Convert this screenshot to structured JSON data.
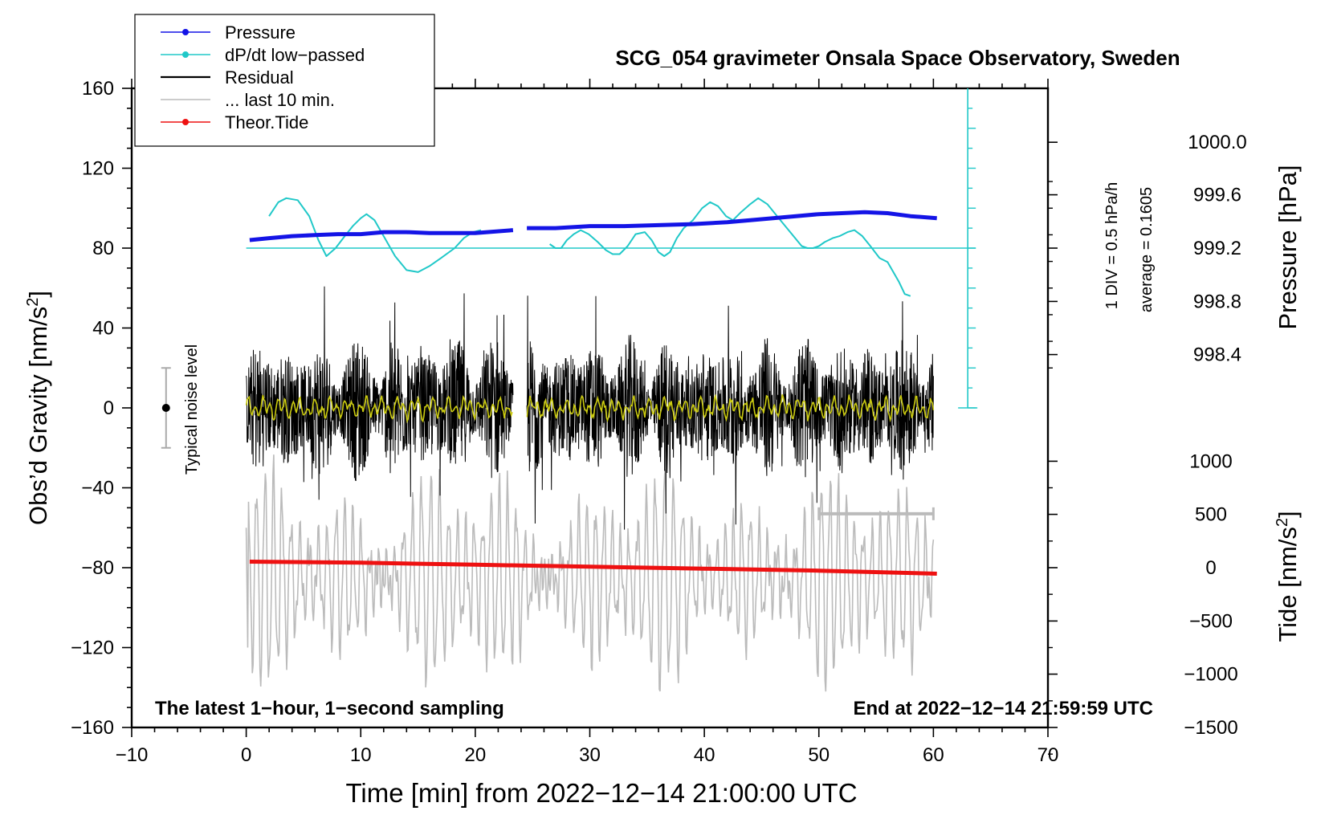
{
  "chart_data": {
    "type": "line",
    "title": "SCG_054 gravimeter Onsala Space Observatory, Sweden",
    "xlabel": "Time [min] from 2022−12−14 21:00:00 UTC",
    "ylabel_left": "Obs’d Gravity [nm/s",
    "ylabel_pressure": "Pressure [hPa]",
    "ylabel_tide": "Tide [nm/s",
    "sup2": "2",
    "close_bracket": "]",
    "xlim": [
      -10,
      70
    ],
    "ylim_left": [
      -160,
      160
    ],
    "x_ticks": [
      "−10",
      "0",
      "10",
      "20",
      "30",
      "40",
      "50",
      "60",
      "70"
    ],
    "x_tick_values": [
      -10,
      0,
      10,
      20,
      30,
      40,
      50,
      60,
      70
    ],
    "y_ticks_left": [
      "160",
      "120",
      "80",
      "40",
      "0",
      "−40",
      "−80",
      "−120",
      "−160"
    ],
    "y_tick_values_left": [
      160,
      120,
      80,
      40,
      0,
      -40,
      -80,
      -120,
      -160
    ],
    "pressure_axis": {
      "ticks": [
        "1000.0",
        "999.6",
        "999.2",
        "998.8",
        "998.4"
      ],
      "tick_values": [
        1000.0,
        999.6,
        999.2,
        998.8,
        998.4
      ],
      "gravity_equivalent": [
        133,
        106.7,
        80,
        53.3,
        26.7
      ]
    },
    "tide_axis": {
      "ticks": [
        "1000",
        "500",
        "0",
        "−500",
        "−1000",
        "−1500"
      ],
      "tick_values": [
        1000,
        500,
        0,
        -500,
        -1000,
        -1500
      ],
      "gravity_equivalent": [
        -26.7,
        -53.3,
        -80,
        -106.7,
        -133.3,
        -160
      ]
    },
    "legend": {
      "placement": "top-left",
      "entries": [
        {
          "label": "Pressure",
          "color": "#1414e6",
          "marker": true
        },
        {
          "label": "dP/dt low−passed",
          "color": "#20c8c8",
          "marker": true
        },
        {
          "label": "Residual",
          "color": "#000000",
          "marker": false
        },
        {
          "label": "... last 10 min.",
          "color": "#bbbbbb",
          "marker": false
        },
        {
          "label": "Theor.Tide",
          "color": "#ee1111",
          "marker": true
        }
      ]
    },
    "annotations": {
      "noise_label": "Typical noise level",
      "noise_bar": [
        -20,
        20
      ],
      "dpdt_scale": "1 DIV = 0.5 hPa/h",
      "dpdt_average": "average = 0.1605",
      "bottom_left": "The latest 1−hour, 1−second sampling",
      "bottom_right": "End at 2022−12−14 21:59:59 UTC",
      "last10_range": [
        50,
        60
      ],
      "last10_level": -53
    },
    "series": [
      {
        "name": "Pressure",
        "axis": "gravity_equivalent",
        "x": [
          0.3,
          2,
          4,
          6,
          8,
          10,
          12,
          14,
          16,
          18,
          20,
          23.3,
          24.5,
          27,
          30,
          33,
          36,
          39,
          42,
          44,
          46,
          48,
          50,
          52,
          54,
          56,
          58,
          60.3
        ],
        "y": [
          84,
          85,
          86,
          86.5,
          87,
          87,
          88,
          88,
          87.5,
          87.5,
          87.5,
          89,
          90,
          90,
          91,
          91,
          91.5,
          92,
          93,
          94,
          95,
          96,
          97,
          97.5,
          98,
          97.5,
          96,
          95
        ]
      },
      {
        "name": "dP/dt low-passed",
        "x": [
          2,
          2.8,
          3.5,
          4.5,
          5.5,
          6.3,
          7,
          7.8,
          8.6,
          9.3,
          10,
          10.5,
          11.2,
          12,
          13,
          14,
          15,
          16,
          17,
          18.2,
          19,
          19.8,
          20.5,
          null,
          26.5,
          27,
          27.5,
          28,
          28.6,
          29.2,
          29.9,
          30.7,
          31.4,
          32,
          32.6,
          33.3,
          34,
          34.8,
          35.4,
          36,
          36.5,
          37,
          37.6,
          38.2,
          39,
          39.8,
          40.5,
          41.2,
          41.9,
          42.5,
          43.2,
          44,
          44.7,
          45.5,
          46.5,
          47.5,
          48.5,
          49,
          49.5,
          50,
          50.5,
          51.2,
          51.8,
          52.5,
          53.1,
          53.8,
          54.5,
          55.3,
          56,
          56.5,
          57,
          57.5,
          58
        ],
        "y": [
          96,
          103,
          105,
          104,
          96,
          84,
          76,
          80,
          86,
          91,
          95,
          97,
          94,
          86,
          76,
          69,
          68,
          71,
          75,
          80,
          85,
          88,
          89,
          null,
          82,
          80,
          80,
          84,
          87,
          89,
          87,
          83,
          79,
          77,
          77,
          81,
          87,
          88,
          84,
          78,
          76,
          78,
          85,
          90,
          94,
          100,
          103,
          101,
          96,
          94,
          98,
          102,
          105,
          102,
          95,
          88,
          81,
          80,
          80,
          81,
          83,
          85,
          86,
          88,
          89,
          86,
          81,
          75,
          73,
          68,
          63,
          57,
          56
        ]
      },
      {
        "name": "Residual",
        "x_range": [
          0,
          60
        ],
        "gap": [
          23.3,
          24.5
        ],
        "typical_amplitude": 25,
        "y_extent": [
          -67,
          66
        ]
      },
      {
        "name": "Residual low-passed",
        "color": "#cccc11",
        "x_range": [
          0,
          60
        ],
        "gap": [
          23.3,
          24.5
        ],
        "typical_amplitude": 5
      },
      {
        "name": "... last 10 min.",
        "x_range": [
          0,
          60
        ],
        "y_center": -85,
        "y_extent": [
          -157,
          -18
        ]
      },
      {
        "name": "Theor.Tide",
        "x": [
          0.3,
          10,
          20,
          30,
          40,
          50,
          60.3
        ],
        "y": [
          -77,
          -77.5,
          -78.5,
          -79.5,
          -80.5,
          -81.5,
          -83
        ]
      }
    ]
  }
}
